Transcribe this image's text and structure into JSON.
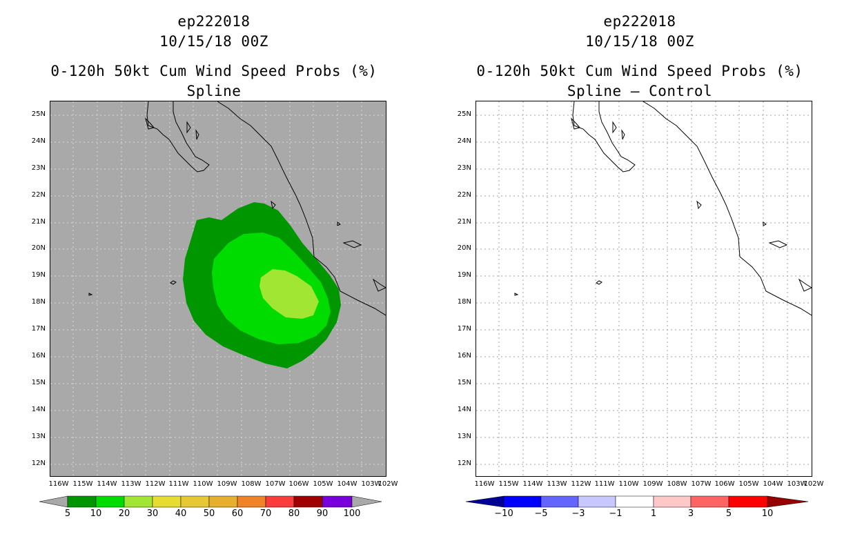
{
  "left": {
    "storm": "ep222018",
    "date": "10/15/18 00Z",
    "product": "0-120h 50kt Cum Wind Speed Probs (%)",
    "method": "Spline",
    "colorbar": {
      "labels": [
        "5",
        "10",
        "20",
        "30",
        "40",
        "50",
        "60",
        "70",
        "80",
        "90",
        "100"
      ],
      "colors": [
        "#a9a9a9",
        "#009600",
        "#00dc00",
        "#a0e632",
        "#e6dc32",
        "#e6c832",
        "#e6af2d",
        "#f08228",
        "#fa3c3c",
        "#a00000",
        "#7800dc",
        "#a9a9a9"
      ]
    },
    "background_color": "#a9a9a9",
    "contours": [
      {
        "level": "5-10",
        "color": "#009600"
      },
      {
        "level": "10-20",
        "color": "#00dc00"
      },
      {
        "level": "20-30",
        "color": "#a0e632"
      }
    ]
  },
  "right": {
    "storm": "ep222018",
    "date": "10/15/18 00Z",
    "product": "0-120h 50kt Cum Wind Speed Probs (%)",
    "method": "Spline – Control",
    "colorbar": {
      "labels": [
        "−10",
        "−5",
        "−3",
        "−1",
        "1",
        "3",
        "5",
        "10"
      ],
      "colors": [
        "#000096",
        "#0000ff",
        "#6464ff",
        "#c8c8ff",
        "#ffffff",
        "#ffc8c8",
        "#ff6464",
        "#ff0000",
        "#960000"
      ]
    }
  },
  "axes": {
    "lat_labels": [
      "25N",
      "24N",
      "23N",
      "22N",
      "21N",
      "20N",
      "19N",
      "18N",
      "17N",
      "16N",
      "15N",
      "14N",
      "13N",
      "12N"
    ],
    "lon_labels": [
      "116W",
      "115W",
      "114W",
      "113W",
      "112W",
      "111W",
      "110W",
      "109W",
      "108W",
      "107W",
      "106W",
      "105W",
      "104W",
      "103W",
      "102W"
    ]
  }
}
